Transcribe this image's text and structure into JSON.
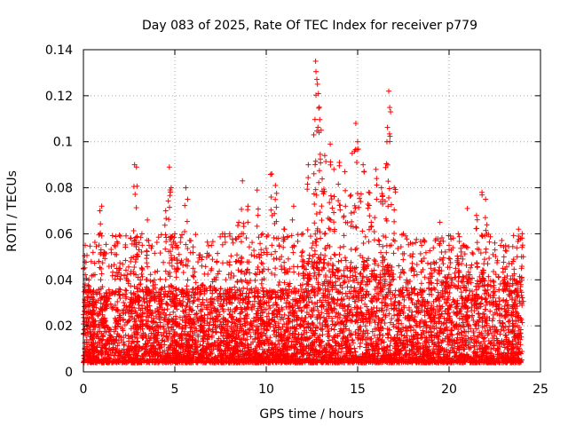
{
  "chart_data": {
    "type": "scatter",
    "title": "Day 083 of 2025, Rate Of TEC Index for receiver p779",
    "xlabel": "GPS time / hours",
    "ylabel": "ROTI / TECUs",
    "xlim": [
      0,
      25
    ],
    "ylim": [
      0,
      0.14
    ],
    "x_ticks": [
      "0",
      "5",
      "10",
      "15",
      "20",
      "25"
    ],
    "y_ticks": [
      "0",
      "0.02",
      "0.04",
      "0.06",
      "0.08",
      "0.1",
      "0.12",
      "0.14"
    ],
    "grid": true,
    "marker": "plus",
    "color": "#ff0000",
    "series": [
      {
        "x": [
          0.0,
          0.1,
          0.2,
          0.3,
          0.5,
          0.9,
          1.0,
          1.7,
          2.0,
          2.6,
          2.8,
          2.9,
          3.2,
          3.5,
          4.5,
          4.7,
          4.8,
          5.0,
          5.1,
          5.6,
          5.7,
          6.0,
          6.5,
          7.0,
          7.3,
          8.0,
          8.5,
          8.7,
          9.0,
          9.5,
          9.8,
          10.3,
          10.5,
          11.0,
          11.5,
          12.0,
          12.3,
          12.6,
          12.7,
          12.8,
          12.9,
          13.0,
          13.2,
          13.5,
          13.7,
          14.0,
          14.3,
          14.7,
          14.9,
          15.0,
          15.3,
          15.6,
          16.0,
          16.3,
          16.6,
          16.7,
          16.8,
          17.0,
          17.5,
          18.0,
          18.5,
          19.0,
          19.5,
          20.0,
          20.5,
          21.0,
          21.5,
          21.8,
          22.0,
          22.5,
          23.0,
          23.5,
          23.8,
          24.0
        ],
        "y": [
          0.045,
          0.055,
          0.035,
          0.04,
          0.03,
          0.07,
          0.072,
          0.055,
          0.045,
          0.058,
          0.09,
          0.089,
          0.06,
          0.066,
          0.07,
          0.089,
          0.08,
          0.06,
          0.055,
          0.08,
          0.075,
          0.045,
          0.05,
          0.055,
          0.048,
          0.06,
          0.065,
          0.083,
          0.072,
          0.079,
          0.06,
          0.086,
          0.081,
          0.062,
          0.072,
          0.06,
          0.09,
          0.103,
          0.135,
          0.125,
          0.115,
          0.105,
          0.094,
          0.099,
          0.088,
          0.091,
          0.087,
          0.095,
          0.108,
          0.1,
          0.09,
          0.078,
          0.088,
          0.08,
          0.1,
          0.122,
          0.113,
          0.08,
          0.06,
          0.05,
          0.055,
          0.045,
          0.065,
          0.055,
          0.06,
          0.071,
          0.068,
          0.078,
          0.075,
          0.056,
          0.05,
          0.048,
          0.062,
          0.06
        ]
      }
    ]
  }
}
